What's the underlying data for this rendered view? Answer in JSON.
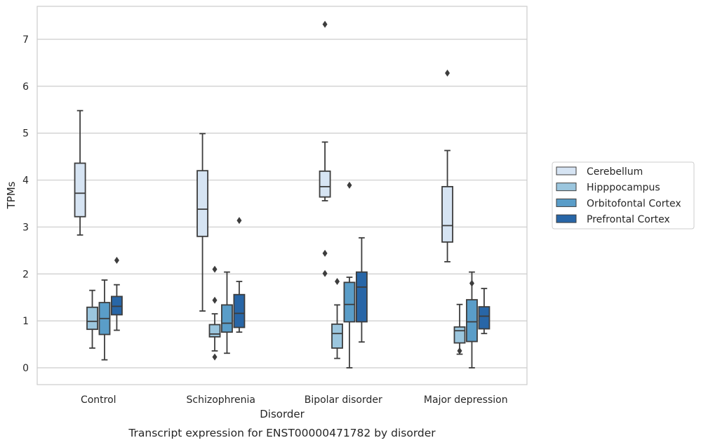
{
  "chart_data": {
    "type": "box",
    "title": "Transcript expression for ENST00000471782 by disorder",
    "xlabel": "Disorder",
    "ylabel": "TPMs",
    "ylim": [
      -0.35,
      7.7
    ],
    "yticks": [
      0,
      1,
      2,
      3,
      4,
      5,
      6,
      7
    ],
    "ytick_labels": [
      "0",
      "1",
      "2",
      "3",
      "4",
      "5",
      "6",
      "7"
    ],
    "grid": "horizontal",
    "legend_position": "right-outside",
    "categories": [
      "Control",
      "Schizophrenia",
      "Bipolar disorder",
      "Major depression"
    ],
    "series": [
      {
        "name": "Cerebellum",
        "color": "#d6e4f3",
        "boxes": [
          {
            "whislo": 2.83,
            "q1": 3.22,
            "med": 3.72,
            "q3": 4.36,
            "whishi": 5.48,
            "fliers": []
          },
          {
            "whislo": 1.21,
            "q1": 2.8,
            "med": 3.38,
            "q3": 4.2,
            "whishi": 4.99,
            "fliers": []
          },
          {
            "whislo": 3.56,
            "q1": 3.64,
            "med": 3.86,
            "q3": 4.19,
            "whishi": 4.81,
            "fliers": [
              7.32,
              2.44,
              2.01
            ]
          },
          {
            "whislo": 2.26,
            "q1": 2.68,
            "med": 3.03,
            "q3": 3.86,
            "whishi": 4.63,
            "fliers": [
              6.28
            ]
          }
        ]
      },
      {
        "name": "Hipppocampus",
        "color": "#9bc6de",
        "boxes": [
          {
            "whislo": 0.42,
            "q1": 0.82,
            "med": 0.99,
            "q3": 1.29,
            "whishi": 1.65,
            "fliers": []
          },
          {
            "whislo": 0.36,
            "q1": 0.66,
            "med": 0.72,
            "q3": 0.92,
            "whishi": 1.15,
            "fliers": [
              2.1,
              1.44,
              0.23
            ]
          },
          {
            "whislo": 0.2,
            "q1": 0.42,
            "med": 0.73,
            "q3": 0.93,
            "whishi": 1.34,
            "fliers": [
              1.84
            ]
          },
          {
            "whislo": 0.29,
            "q1": 0.53,
            "med": 0.79,
            "q3": 0.87,
            "whishi": 1.35,
            "fliers": [
              0.36
            ]
          }
        ]
      },
      {
        "name": "Orbitofontal Cortex",
        "color": "#5a9dc8",
        "boxes": [
          {
            "whislo": 0.17,
            "q1": 0.71,
            "med": 1.05,
            "q3": 1.39,
            "whishi": 1.87,
            "fliers": []
          },
          {
            "whislo": 0.31,
            "q1": 0.76,
            "med": 0.95,
            "q3": 1.34,
            "whishi": 2.04,
            "fliers": []
          },
          {
            "whislo": 0.0,
            "q1": 0.98,
            "med": 1.35,
            "q3": 1.82,
            "whishi": 1.93,
            "fliers": [
              3.89
            ]
          },
          {
            "whislo": 0.0,
            "q1": 0.56,
            "med": 0.98,
            "q3": 1.45,
            "whishi": 2.04,
            "fliers": [
              1.8
            ]
          }
        ]
      },
      {
        "name": "Prefrontal Cortex",
        "color": "#2866a7",
        "boxes": [
          {
            "whislo": 0.8,
            "q1": 1.13,
            "med": 1.31,
            "q3": 1.52,
            "whishi": 1.77,
            "fliers": [
              2.29
            ]
          },
          {
            "whislo": 0.76,
            "q1": 0.86,
            "med": 1.16,
            "q3": 1.56,
            "whishi": 1.84,
            "fliers": [
              3.14
            ]
          },
          {
            "whislo": 0.55,
            "q1": 0.98,
            "med": 1.72,
            "q3": 2.04,
            "whishi": 2.77,
            "fliers": []
          },
          {
            "whislo": 0.73,
            "q1": 0.83,
            "med": 1.1,
            "q3": 1.3,
            "whishi": 1.69,
            "fliers": []
          }
        ]
      }
    ]
  }
}
